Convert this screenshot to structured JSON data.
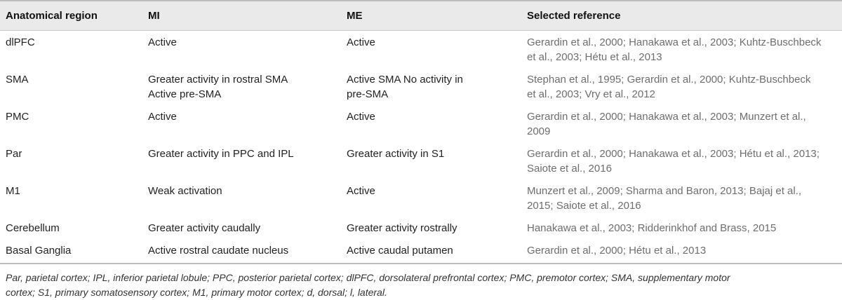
{
  "table": {
    "headers": [
      "Anatomical region",
      "MI",
      "ME",
      "Selected reference"
    ],
    "rows": [
      {
        "region": "dlPFC",
        "mi": [
          "Active"
        ],
        "me": [
          "Active"
        ],
        "ref": [
          "Gerardin et al., 2000; Hanakawa et al., 2003; Kuhtz-Buschbeck",
          "et al., 2003; Hétu et al., 2013"
        ]
      },
      {
        "region": "SMA",
        "mi": [
          "Greater activity in rostral SMA",
          "Active pre-SMA"
        ],
        "me": [
          "Active SMA No activity in",
          "pre-SMA"
        ],
        "ref": [
          "Stephan et al., 1995; Gerardin et al., 2000; Kuhtz-Buschbeck",
          "et al., 2003; Vry et al., 2012"
        ]
      },
      {
        "region": "PMC",
        "mi": [
          "Active"
        ],
        "me": [
          "Active"
        ],
        "ref": [
          "Gerardin et al., 2000; Hanakawa et al., 2003; Munzert et al.,",
          "2009"
        ]
      },
      {
        "region": "Par",
        "mi": [
          "Greater activity in PPC and IPL"
        ],
        "me": [
          "Greater activity in S1"
        ],
        "ref": [
          "Gerardin et al., 2000; Hanakawa et al., 2003; Hétu et al., 2013;",
          "Saiote et al., 2016"
        ]
      },
      {
        "region": "M1",
        "mi": [
          "Weak activation"
        ],
        "me": [
          "Active"
        ],
        "ref": [
          "Munzert et al., 2009; Sharma and Baron, 2013; Bajaj et al.,",
          "2015; Saiote et al., 2016"
        ]
      },
      {
        "region": "Cerebellum",
        "mi": [
          "Greater activity caudally"
        ],
        "me": [
          "Greater activity rostrally"
        ],
        "ref": [
          "Hanakawa et al., 2003; Ridderinkhof and Brass, 2015"
        ]
      },
      {
        "region": "Basal Ganglia",
        "mi": [
          "Active rostral caudate nucleus"
        ],
        "me": [
          "Active caudal putamen"
        ],
        "ref": [
          "Gerardin et al., 2000; Hétu et al., 2013"
        ]
      }
    ]
  },
  "footnote": {
    "lines": [
      "Par, parietal cortex; IPL, inferior parietal lobule; PPC, posterior parietal cortex; dlPFC, dorsolateral prefrontal cortex; PMC, premotor cortex; SMA, supplementary motor",
      "cortex; S1, primary somatosensory cortex; M1, primary motor cortex; d, dorsal; l, lateral."
    ]
  },
  "colors": {
    "header_bg": "#eaeaea",
    "reference_text": "#6e6e6e",
    "rule": "#bdbdbd"
  }
}
